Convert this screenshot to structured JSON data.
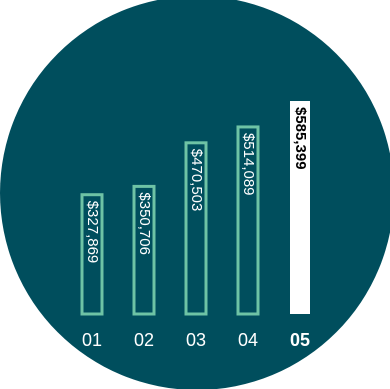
{
  "colors": {
    "background_circle": "#004e5d",
    "bar_outline": "#6ec3a5",
    "highlight_bar": "#ffffff",
    "label_text": "#ffffff",
    "highlight_label_text": "#000000"
  },
  "chart_data": {
    "type": "bar",
    "title": "",
    "xlabel": "",
    "ylabel": "",
    "categories": [
      "01",
      "02",
      "03",
      "04",
      "05"
    ],
    "values": [
      327869,
      350706,
      470503,
      514089,
      585399
    ],
    "value_labels": [
      "$327,869",
      "$350,706",
      "$470,503",
      "$514,089",
      "$585,399"
    ],
    "highlight_index": 4,
    "grid": false,
    "legend": "none"
  }
}
